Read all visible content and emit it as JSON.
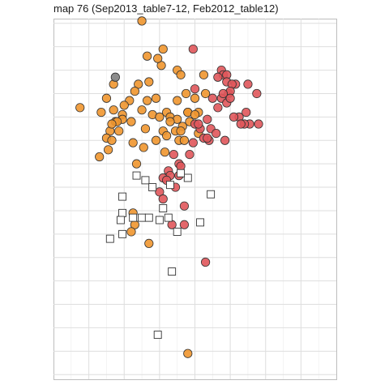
{
  "chart_data": {
    "type": "scatter",
    "title": "map 76 (Sep2013_table7-12, Feb2012_table12)",
    "xlabel": "",
    "ylabel": "",
    "grid": true,
    "axis_tick_labels": false,
    "colors": {
      "orange": "#f0962f",
      "red": "#e0565b",
      "gray": "#808080",
      "square_fill": "#ffffff",
      "outline": "#333333"
    },
    "series": [
      {
        "marker": "circle",
        "color": "orange",
        "points": [
          [
            5,
            0.1
          ],
          [
            6.2,
            -1.1
          ],
          [
            5.3,
            -1.4
          ],
          [
            6.1,
            -1.8
          ],
          [
            5.9,
            -1.5
          ],
          [
            5.4,
            -2.5
          ],
          [
            4.8,
            -2.6
          ],
          [
            7,
            -2.0
          ],
          [
            7.2,
            -2.2
          ],
          [
            8.5,
            -2.2
          ],
          [
            3.4,
            -2.6
          ],
          [
            4.6,
            -2.9
          ],
          [
            3,
            -3.2
          ],
          [
            1.5,
            -3.6
          ],
          [
            2.7,
            -3.8
          ],
          [
            4.3,
            -3.3
          ],
          [
            4.0,
            -3.5
          ],
          [
            3.4,
            -3.7
          ],
          [
            3.5,
            -4.2
          ],
          [
            3.9,
            -3.9
          ],
          [
            5,
            -3.7
          ],
          [
            5.8,
            -3.2
          ],
          [
            5.3,
            -3.3
          ],
          [
            5.6,
            -3.9
          ],
          [
            6.4,
            -3.8
          ],
          [
            5.2,
            -4.5
          ],
          [
            6,
            -4.0
          ],
          [
            6.6,
            -4.0
          ],
          [
            7.6,
            -3.8
          ],
          [
            8.2,
            -3.8
          ],
          [
            8.0,
            -3.2
          ],
          [
            7.5,
            -3.0
          ],
          [
            8.6,
            -3.0
          ],
          [
            7.0,
            -3.3
          ],
          [
            7.0,
            -4.1
          ],
          [
            7.3,
            -4.4
          ],
          [
            6.9,
            -4.6
          ],
          [
            6.2,
            -4.6
          ],
          [
            5.8,
            -5.0
          ],
          [
            6.4,
            -4.8
          ],
          [
            6.3,
            -5.5
          ],
          [
            7.1,
            -5.0
          ],
          [
            6.6,
            -4.2
          ],
          [
            5.1,
            -5.3
          ],
          [
            3.9,
            -4.1
          ],
          [
            3.6,
            -4.2
          ],
          [
            3.2,
            -4.6
          ],
          [
            3.7,
            -4.6
          ],
          [
            3.0,
            -4.9
          ],
          [
            4.4,
            -4.2
          ],
          [
            3.3,
            -4.3
          ],
          [
            3.1,
            -5.4
          ],
          [
            2.6,
            -5.7
          ],
          [
            3.3,
            -5.0
          ],
          [
            4.5,
            -5.1
          ],
          [
            4.7,
            -6.0
          ],
          [
            7.6,
            -3.8
          ],
          [
            7.2,
            -4.6
          ],
          [
            7.4,
            -5.0
          ],
          [
            7.7,
            -4.2
          ],
          [
            8.2,
            -4.7
          ],
          [
            8.0,
            -3.9
          ],
          [
            4.5,
            -8.1
          ],
          [
            4.6,
            -8.6
          ],
          [
            4.4,
            -8.9
          ],
          [
            5.4,
            -9.4
          ],
          [
            7.6,
            -14.1
          ]
        ]
      },
      {
        "marker": "circle",
        "color": "red",
        "points": [
          [
            7.9,
            -1.1
          ],
          [
            9.5,
            -2.0
          ],
          [
            8.0,
            -2.8
          ],
          [
            9.6,
            -2.2
          ],
          [
            9.8,
            -2.2
          ],
          [
            9.8,
            -2.5
          ],
          [
            9.3,
            -2.3
          ],
          [
            10.3,
            -2.6
          ],
          [
            10.1,
            -2.6
          ],
          [
            9.5,
            -3.2
          ],
          [
            9.9,
            -3.0
          ],
          [
            9.0,
            -3.2
          ],
          [
            9.8,
            -3.4
          ],
          [
            10.0,
            -2.9
          ],
          [
            10.0,
            -3.2
          ],
          [
            9.6,
            -3.0
          ],
          [
            11.0,
            -2.6
          ],
          [
            11.5,
            -3.0
          ],
          [
            10.9,
            -3.8
          ],
          [
            10.5,
            -4.0
          ],
          [
            11.1,
            -4.3
          ],
          [
            10.8,
            -4.3
          ],
          [
            11.6,
            -4.3
          ],
          [
            10.6,
            -4.3
          ],
          [
            10.2,
            -4.0
          ],
          [
            9.3,
            -3.6
          ],
          [
            8.7,
            -4.1
          ],
          [
            8.9,
            -4.5
          ],
          [
            8.3,
            -4.5
          ],
          [
            9.2,
            -4.7
          ],
          [
            8.8,
            -5.0
          ],
          [
            9.7,
            -5.0
          ],
          [
            7.9,
            -5.1
          ],
          [
            8.5,
            -4.9
          ],
          [
            8.0,
            -4.3
          ],
          [
            7.7,
            -5.6
          ],
          [
            6.8,
            -5.6
          ],
          [
            7.1,
            -6.0
          ],
          [
            6.5,
            -6.3
          ],
          [
            6.6,
            -6.5
          ],
          [
            7.2,
            -6.1
          ],
          [
            7.1,
            -6.5
          ],
          [
            6.9,
            -7.0
          ],
          [
            6.2,
            -6.6
          ],
          [
            6.4,
            -6.7
          ],
          [
            6.0,
            -7.2
          ],
          [
            6.2,
            -7.5
          ],
          [
            7.4,
            -7.8
          ],
          [
            7.4,
            -8.6
          ],
          [
            6.7,
            -8.6
          ],
          [
            8.6,
            -10.2
          ],
          [
            8.7,
            -4.9
          ],
          [
            8.2,
            -4.3
          ]
        ]
      },
      {
        "marker": "circle",
        "color": "gray",
        "points": [
          [
            3.5,
            -2.3
          ]
        ]
      },
      {
        "marker": "square",
        "color": "white",
        "points": [
          [
            4.7,
            -6.5
          ],
          [
            5.2,
            -6.7
          ],
          [
            5.6,
            -7.0
          ],
          [
            6.6,
            -6.9
          ],
          [
            3.9,
            -7.4
          ],
          [
            3.9,
            -8.1
          ],
          [
            3.8,
            -8.4
          ],
          [
            4.5,
            -8.3
          ],
          [
            5,
            -8.3
          ],
          [
            6,
            -8.4
          ],
          [
            6.2,
            -7.9
          ],
          [
            6.5,
            -8.3
          ],
          [
            6.7,
            -10.6
          ],
          [
            8.3,
            -8.5
          ],
          [
            8.9,
            -7.3
          ],
          [
            7.0,
            -8.9
          ],
          [
            7.6,
            -6.6
          ],
          [
            5.9,
            -13.3
          ],
          [
            3.2,
            -9.2
          ],
          [
            3.9,
            -9.0
          ],
          [
            5.4,
            -8.3
          ],
          [
            7.2,
            -6.4
          ]
        ]
      }
    ],
    "xlim": [
      0,
      16
    ],
    "ylim": [
      -15.2,
      0.2
    ]
  }
}
